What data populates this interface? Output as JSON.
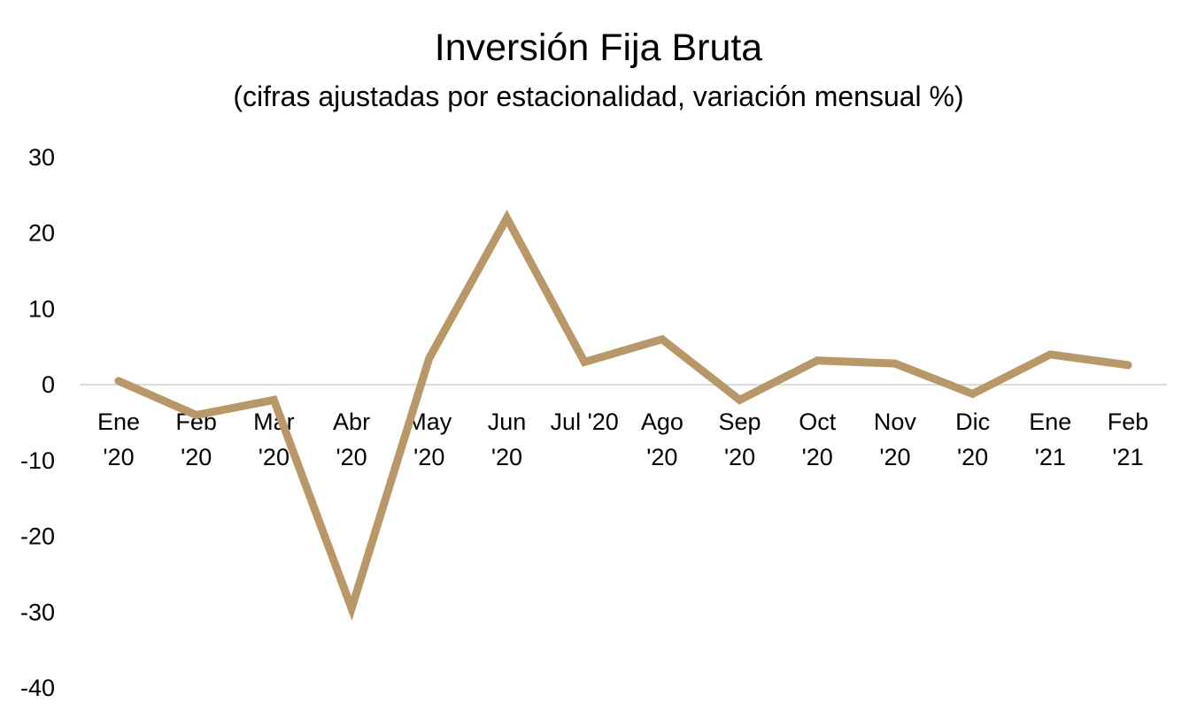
{
  "chart_data": {
    "type": "line",
    "title": "Inversión Fija Bruta",
    "subtitle": "(cifras ajustadas por estacionalidad, variación mensual %)",
    "xlabel": "",
    "ylabel": "",
    "categories": [
      [
        "Ene",
        "'20"
      ],
      [
        "Feb",
        "'20"
      ],
      [
        "Mar",
        "'20"
      ],
      [
        "Abr",
        "'20"
      ],
      [
        "May",
        "'20"
      ],
      [
        "Jun",
        "'20"
      ],
      [
        "Jul '20"
      ],
      [
        "Ago",
        "'20"
      ],
      [
        "Sep",
        "'20"
      ],
      [
        "Oct",
        "'20"
      ],
      [
        "Nov",
        "'20"
      ],
      [
        "Dic",
        "'20"
      ],
      [
        "Ene",
        "'21"
      ],
      [
        "Feb",
        "'21"
      ]
    ],
    "series": [
      {
        "values": [
          0.5,
          -4.0,
          -2.0,
          -29.5,
          3.5,
          22.0,
          3.0,
          6.0,
          -2.0,
          3.2,
          2.8,
          -1.2,
          4.0,
          2.6
        ],
        "color": "#b89868"
      }
    ],
    "ylim": [
      -40,
      30
    ],
    "yticks": [
      30,
      20,
      10,
      0,
      -10,
      -20,
      -30,
      -40
    ],
    "grid": false,
    "legend": "none",
    "zero_line_color": "#d9d9d9"
  }
}
